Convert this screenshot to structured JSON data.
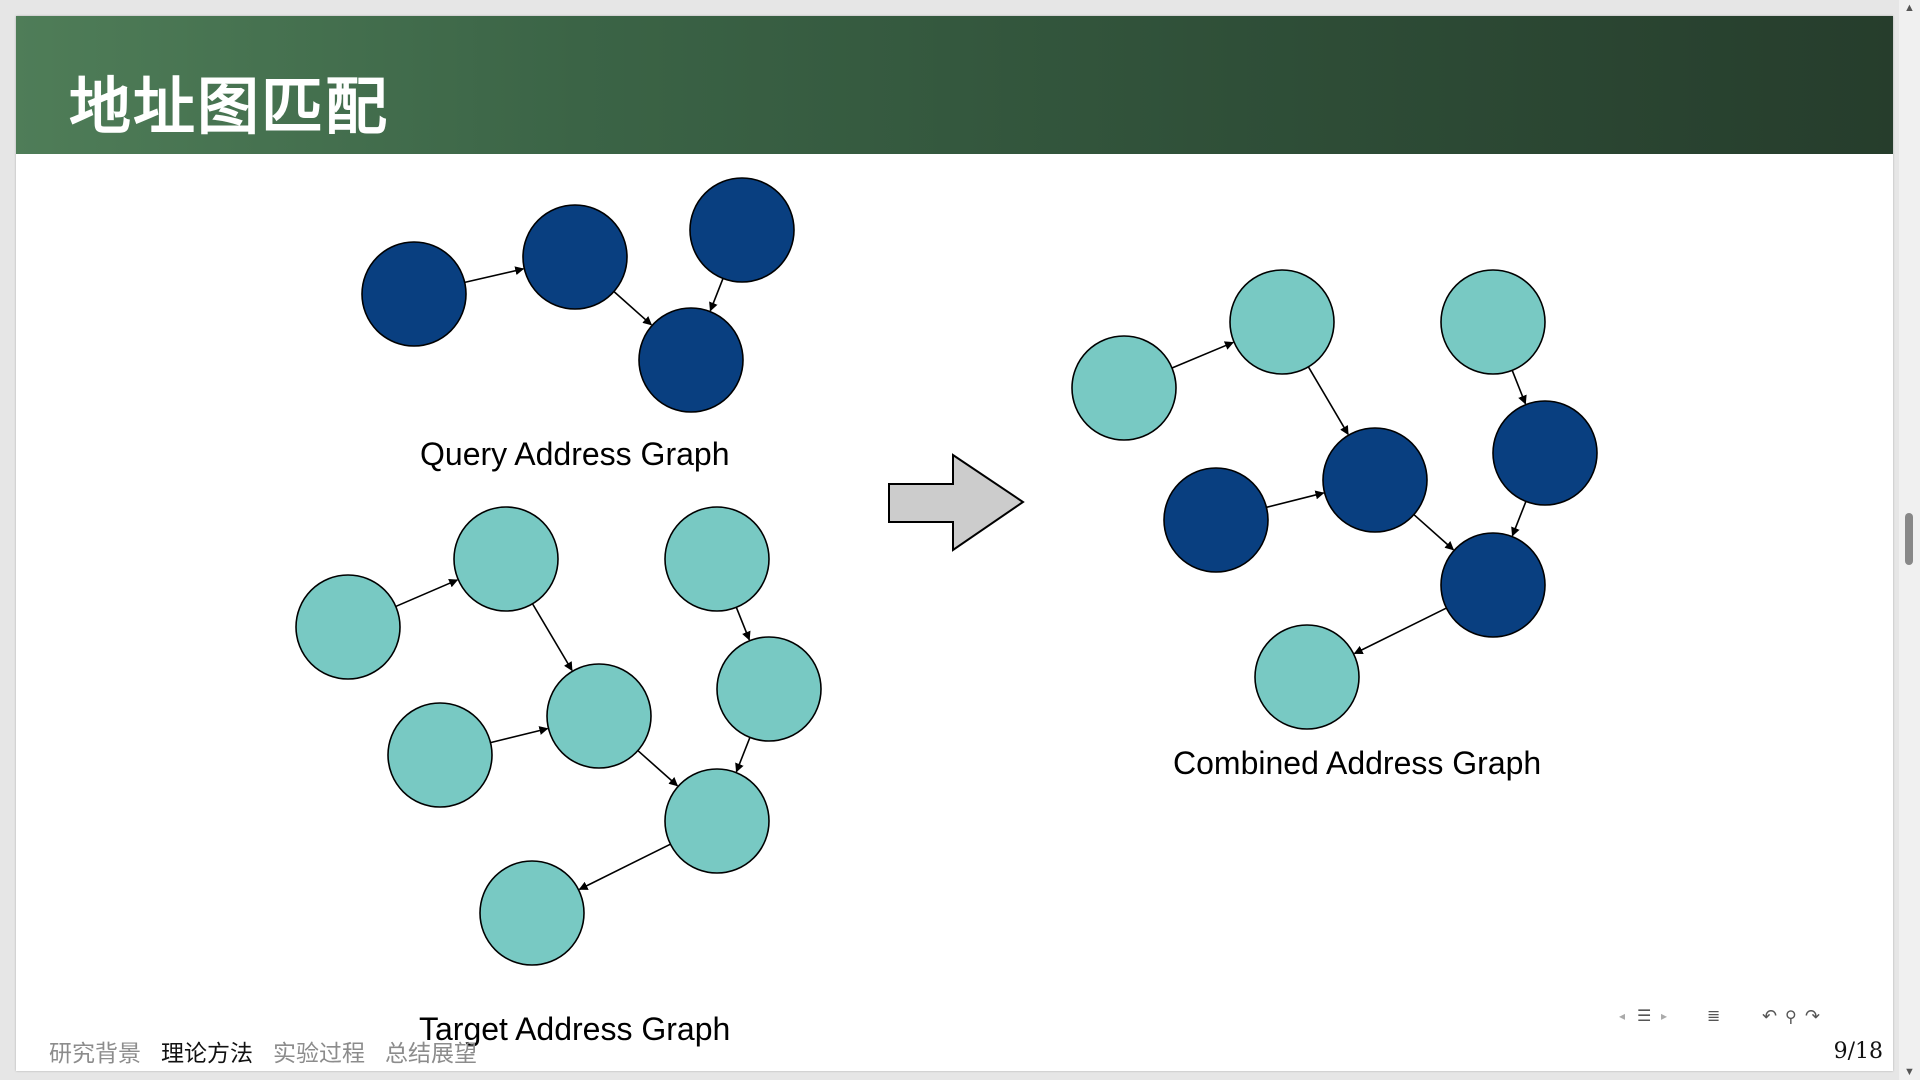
{
  "slide": {
    "title": "地址图匹配",
    "page_number": "9/18"
  },
  "captions": {
    "query": "Query Address Graph",
    "target": "Target Address Graph",
    "combined": "Combined Address Graph"
  },
  "bottom_nav": {
    "items": [
      "研究背景",
      "理论方法",
      "实验过程",
      "总结展望"
    ],
    "active_index": 1
  },
  "controls": {
    "prev_icon": "◂",
    "section_icon": "☰",
    "next_icon": "▸",
    "toc_icon": "≣",
    "back_icon": "↶",
    "search_icon": "⚲",
    "forward_icon": "↷"
  },
  "scrollbar": {
    "up_icon": "▲",
    "down_icon": "▼"
  },
  "colors": {
    "query_node": "#093f80",
    "target_node": "#78c9c3",
    "title_gradient_start": "#4f7d58",
    "title_gradient_end": "#263d2c"
  },
  "graphs": {
    "query": {
      "nodes": [
        "q1",
        "q2",
        "q3",
        "q4"
      ],
      "edges": [
        [
          "q1",
          "q2"
        ],
        [
          "q2",
          "q3"
        ],
        [
          "q4",
          "q3"
        ]
      ]
    },
    "target": {
      "nodes": [
        "t1",
        "t2",
        "t3",
        "t4",
        "t5",
        "t6",
        "t7",
        "t8"
      ],
      "edges": [
        [
          "t1",
          "t2"
        ],
        [
          "t2",
          "t4"
        ],
        [
          "t3",
          "t4"
        ],
        [
          "t4",
          "t7"
        ],
        [
          "t5",
          "t6"
        ],
        [
          "t6",
          "t7"
        ],
        [
          "t7",
          "t8"
        ]
      ]
    },
    "combined": {
      "nodes": [
        "c1",
        "c2",
        "c3",
        "c4",
        "c5",
        "c6",
        "c7",
        "c8"
      ],
      "highlighted": [
        "c3",
        "c4",
        "c6",
        "c7"
      ],
      "edges": [
        [
          "c1",
          "c2"
        ],
        [
          "c2",
          "c4"
        ],
        [
          "c3",
          "c4"
        ],
        [
          "c4",
          "c7"
        ],
        [
          "c5",
          "c6"
        ],
        [
          "c6",
          "c7"
        ],
        [
          "c7",
          "c8"
        ]
      ]
    }
  }
}
